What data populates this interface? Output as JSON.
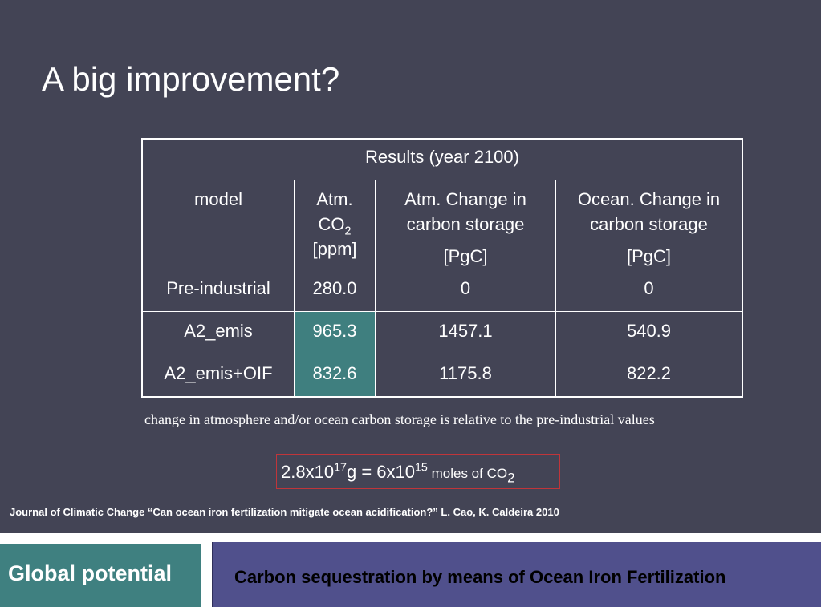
{
  "slide": {
    "title": "A big improvement?",
    "table": {
      "caption": "Results (year 2100)",
      "headers": {
        "model": "model",
        "atm_co2_line1": "Atm.",
        "atm_co2_line2": "CO",
        "atm_co2_sub": "2",
        "atm_co2_unit": "[ppm]",
        "atm_change": "Atm. Change in carbon storage",
        "atm_change_unit": "[PgC]",
        "ocean_change": "Ocean. Change in carbon storage",
        "ocean_change_unit": "[PgC]"
      },
      "rows": [
        {
          "model": "Pre-industrial",
          "atm_co2": "280.0",
          "atm_change": "0",
          "ocean_change": "0"
        },
        {
          "model": "A2_emis",
          "atm_co2": "965.3",
          "atm_change": "1457.1",
          "ocean_change": "540.9"
        },
        {
          "model": "A2_emis+OIF",
          "atm_co2": "832.6",
          "atm_change": "1175.8",
          "ocean_change": "822.2"
        }
      ],
      "highlight_color": "#3f7f7f"
    },
    "note": "change in atmosphere and/or ocean carbon storage is relative to the pre-industrial values",
    "formula": {
      "part1": "2.8x10",
      "exp1": "17",
      "part2": "g = 6x10",
      "exp2": "15",
      "part3": " moles of CO",
      "sub": "2"
    },
    "citation": "Journal of Climatic Change “Can ocean iron fertilization mitigate ocean acidification?”  L. Cao, K. Caldeira 2010"
  },
  "footer": {
    "section_label": "Global potential",
    "presentation_title": "Carbon sequestration by means of Ocean Iron Fertilization"
  },
  "colors": {
    "slide_background": "#434455",
    "footer_left": "#3f8080",
    "footer_right": "#50508c",
    "formula_border": "#c0353a"
  }
}
